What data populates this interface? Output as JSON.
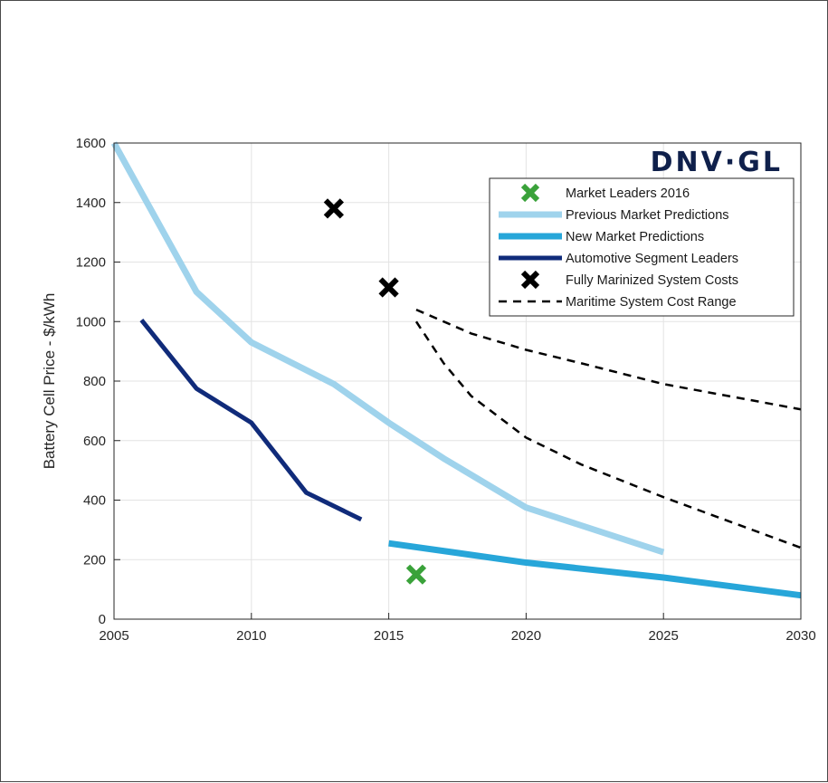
{
  "brand_logo": "DNV·GL",
  "chart_data": {
    "type": "line",
    "title": "",
    "xlabel": "",
    "ylabel": "Battery Cell Price - $/kWh",
    "xlim": [
      2005,
      2030
    ],
    "ylim": [
      0,
      1600
    ],
    "xticks": [
      2005,
      2010,
      2015,
      2020,
      2025,
      2030
    ],
    "yticks": [
      0,
      200,
      400,
      600,
      800,
      1000,
      1200,
      1400,
      1600
    ],
    "grid": true,
    "legend_position": "top-right",
    "series": [
      {
        "name": "Market Leaders 2016",
        "kind": "marker",
        "marker": "x",
        "color": "#3aa23a",
        "x": [
          2016
        ],
        "y": [
          150
        ]
      },
      {
        "name": "Previous Market Predictions",
        "kind": "line",
        "color": "#9fd3ec",
        "x": [
          2005,
          2008,
          2010,
          2013,
          2015,
          2017,
          2020,
          2025
        ],
        "y": [
          1600,
          1100,
          930,
          790,
          660,
          540,
          375,
          225
        ]
      },
      {
        "name": "New Market Predictions",
        "kind": "line",
        "color": "#27a6d9",
        "x": [
          2015,
          2020,
          2025,
          2030
        ],
        "y": [
          255,
          190,
          140,
          80
        ]
      },
      {
        "name": "Automotive Segment Leaders",
        "kind": "line",
        "color": "#102b7a",
        "x": [
          2006,
          2008,
          2010,
          2012,
          2014
        ],
        "y": [
          1005,
          775,
          660,
          425,
          335
        ]
      },
      {
        "name": "Fully Marinized System Costs",
        "kind": "marker",
        "marker": "x",
        "color": "#000000",
        "x": [
          2013,
          2015
        ],
        "y": [
          1380,
          1115
        ]
      },
      {
        "name": "Maritime System Cost Range",
        "kind": "dashed",
        "color": "#000000",
        "lines": [
          {
            "x": [
              2016,
              2018,
              2020,
              2022,
              2025,
              2030
            ],
            "y": [
              1040,
              960,
              905,
              860,
              790,
              705
            ]
          },
          {
            "x": [
              2016,
              2017,
              2018,
              2020,
              2022,
              2025,
              2030
            ],
            "y": [
              1000,
              860,
              750,
              610,
              520,
              410,
              240
            ]
          }
        ]
      }
    ]
  }
}
